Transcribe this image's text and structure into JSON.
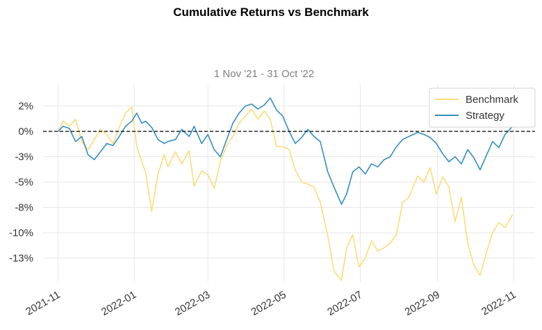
{
  "chart_data": {
    "type": "line",
    "title": "Cumulative Returns vs Benchmark",
    "subtitle": "1 Nov '21 - 31 Oct '22",
    "xlabel": "",
    "ylabel": "",
    "x_ticks": [
      "2021-11",
      "2022-01",
      "2022-03",
      "2022-05",
      "2022-07",
      "2022-09",
      "2022-11"
    ],
    "y_ticks": [
      "2%",
      "0%",
      "-3%",
      "-5%",
      "-8%",
      "-10%",
      "-13%"
    ],
    "y_tick_values": [
      2.5,
      0,
      -2.5,
      -5,
      -7.5,
      -10,
      -12.5
    ],
    "xlim": [
      "2021-10-20",
      "2022-11-18"
    ],
    "ylim": [
      -14.8,
      4.6
    ],
    "grid": true,
    "legend_position": "top-right",
    "baseline": 0,
    "series": [
      {
        "name": "Benchmark",
        "color": "#fbdc7a",
        "x": [
          "2021-11-01",
          "2021-11-05",
          "2021-11-10",
          "2021-11-15",
          "2021-11-20",
          "2021-11-25",
          "2021-11-30",
          "2021-12-05",
          "2021-12-10",
          "2021-12-15",
          "2021-12-20",
          "2021-12-25",
          "2021-12-30",
          "2022-01-03",
          "2022-01-07",
          "2022-01-10",
          "2022-01-15",
          "2022-01-20",
          "2022-01-25",
          "2022-01-28",
          "2022-02-03",
          "2022-02-08",
          "2022-02-14",
          "2022-02-18",
          "2022-02-24",
          "2022-03-01",
          "2022-03-06",
          "2022-03-11",
          "2022-03-16",
          "2022-03-21",
          "2022-03-26",
          "2022-03-31",
          "2022-04-05",
          "2022-04-10",
          "2022-04-15",
          "2022-04-20",
          "2022-04-25",
          "2022-04-30",
          "2022-05-05",
          "2022-05-10",
          "2022-05-15",
          "2022-05-20",
          "2022-05-25",
          "2022-05-30",
          "2022-06-05",
          "2022-06-10",
          "2022-06-16",
          "2022-06-20",
          "2022-06-25",
          "2022-06-30",
          "2022-07-05",
          "2022-07-10",
          "2022-07-15",
          "2022-07-20",
          "2022-07-25",
          "2022-07-30",
          "2022-08-04",
          "2022-08-09",
          "2022-08-16",
          "2022-08-21",
          "2022-08-26",
          "2022-08-31",
          "2022-09-05",
          "2022-09-10",
          "2022-09-15",
          "2022-09-20",
          "2022-09-25",
          "2022-09-30",
          "2022-10-05",
          "2022-10-10",
          "2022-10-15",
          "2022-10-20",
          "2022-10-25",
          "2022-10-31"
        ],
        "values": [
          0.0,
          1.0,
          0.5,
          1.2,
          -1.0,
          -1.8,
          -0.8,
          0.2,
          -0.3,
          -1.2,
          0.4,
          1.8,
          2.4,
          -1.5,
          -3.0,
          -4.0,
          -7.9,
          -4.2,
          -2.3,
          -3.5,
          -2.0,
          -3.2,
          -1.9,
          -5.4,
          -3.9,
          -4.3,
          -5.6,
          -3.0,
          -1.4,
          -0.5,
          0.8,
          1.5,
          2.2,
          1.2,
          2.0,
          1.2,
          -1.5,
          -1.5,
          -1.8,
          -3.8,
          -5.0,
          -5.2,
          -5.5,
          -7.0,
          -10.3,
          -13.8,
          -14.7,
          -11.5,
          -10.2,
          -13.4,
          -12.5,
          -10.8,
          -11.8,
          -11.5,
          -11.0,
          -10.2,
          -7.0,
          -6.5,
          -4.4,
          -5.0,
          -3.6,
          -6.2,
          -4.5,
          -5.5,
          -8.9,
          -6.5,
          -11.0,
          -13.2,
          -14.2,
          -12.0,
          -10.0,
          -9.0,
          -9.5,
          -8.2
        ]
      },
      {
        "name": "Strategy",
        "color": "#348dc1",
        "x": [
          "2021-11-01",
          "2021-11-05",
          "2021-11-10",
          "2021-11-15",
          "2021-11-20",
          "2021-11-25",
          "2021-11-30",
          "2021-12-05",
          "2021-12-10",
          "2021-12-15",
          "2021-12-20",
          "2021-12-25",
          "2021-12-30",
          "2022-01-03",
          "2022-01-07",
          "2022-01-10",
          "2022-01-15",
          "2022-01-20",
          "2022-01-25",
          "2022-01-28",
          "2022-02-03",
          "2022-02-08",
          "2022-02-14",
          "2022-02-18",
          "2022-02-24",
          "2022-03-01",
          "2022-03-06",
          "2022-03-11",
          "2022-03-16",
          "2022-03-21",
          "2022-03-26",
          "2022-03-31",
          "2022-04-05",
          "2022-04-10",
          "2022-04-15",
          "2022-04-20",
          "2022-04-25",
          "2022-04-30",
          "2022-05-05",
          "2022-05-10",
          "2022-05-15",
          "2022-05-20",
          "2022-05-25",
          "2022-05-30",
          "2022-06-05",
          "2022-06-10",
          "2022-06-16",
          "2022-06-20",
          "2022-06-25",
          "2022-06-30",
          "2022-07-05",
          "2022-07-10",
          "2022-07-15",
          "2022-07-20",
          "2022-07-25",
          "2022-07-30",
          "2022-08-04",
          "2022-08-09",
          "2022-08-16",
          "2022-08-21",
          "2022-08-26",
          "2022-08-31",
          "2022-09-05",
          "2022-09-10",
          "2022-09-15",
          "2022-09-20",
          "2022-09-25",
          "2022-09-30",
          "2022-10-05",
          "2022-10-10",
          "2022-10-15",
          "2022-10-20",
          "2022-10-25",
          "2022-10-31"
        ],
        "values": [
          0.0,
          0.5,
          0.3,
          -1.0,
          -0.5,
          -2.3,
          -2.8,
          -2.0,
          -1.2,
          -1.4,
          -0.5,
          0.5,
          1.0,
          1.8,
          0.8,
          1.0,
          0.4,
          -0.8,
          -1.2,
          -1.0,
          -0.8,
          0.2,
          -0.5,
          0.5,
          -1.2,
          -0.3,
          -1.8,
          -2.5,
          -0.8,
          0.8,
          1.8,
          2.5,
          2.7,
          2.2,
          2.6,
          3.3,
          2.1,
          1.5,
          0.0,
          -1.2,
          -0.6,
          0.2,
          -0.5,
          -1.0,
          -4.0,
          -5.5,
          -7.2,
          -6.2,
          -4.0,
          -3.5,
          -4.2,
          -3.2,
          -3.5,
          -2.8,
          -2.5,
          -1.5,
          -0.8,
          -0.5,
          -0.1,
          -0.3,
          -0.6,
          -1.2,
          -2.2,
          -3.0,
          -2.5,
          -3.2,
          -1.8,
          -2.6,
          -3.8,
          -2.4,
          -1.0,
          -1.6,
          -0.3,
          0.5
        ]
      }
    ]
  }
}
